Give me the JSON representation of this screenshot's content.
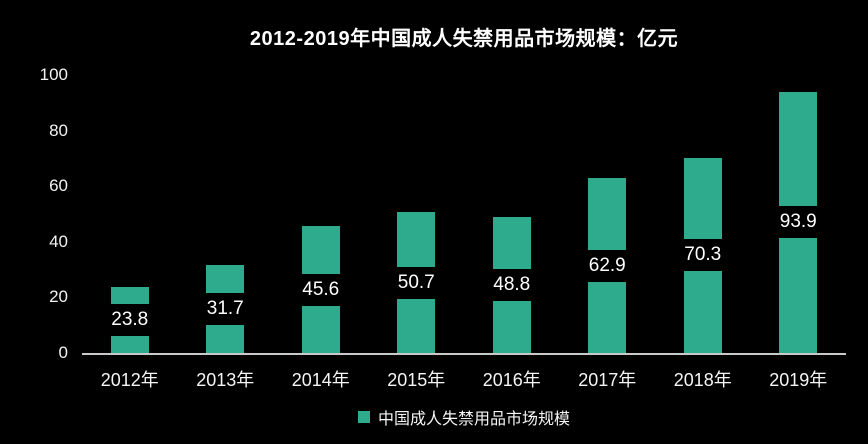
{
  "page": {
    "background_color": "#000000",
    "text_color": "#f2f2f2"
  },
  "chart_data": {
    "type": "bar",
    "title": "2012-2019年中国成人失禁用品市场规模：亿元",
    "categories": [
      "2012年",
      "2013年",
      "2014年",
      "2015年",
      "2016年",
      "2017年",
      "2018年",
      "2019年"
    ],
    "values": [
      23.8,
      31.7,
      45.6,
      50.7,
      48.8,
      62.9,
      70.3,
      93.9
    ],
    "value_labels": [
      "23.8",
      "31.7",
      "45.6",
      "50.7",
      "48.8",
      "62.9",
      "70.3",
      "93.9"
    ],
    "series_name": "中国成人失禁用品市场规模",
    "xlabel": "",
    "ylabel": "",
    "ylim": [
      0,
      100
    ],
    "yticks": [
      0,
      20,
      40,
      60,
      80,
      100
    ],
    "grid": false,
    "legend_position": "bottom",
    "bar_color": "#2dab8c",
    "value_band_color": "#000000",
    "value_text_color": "#ffffff",
    "axis_line_color": "#c9c9c9",
    "tick_text_color": "#f2f2f2"
  }
}
